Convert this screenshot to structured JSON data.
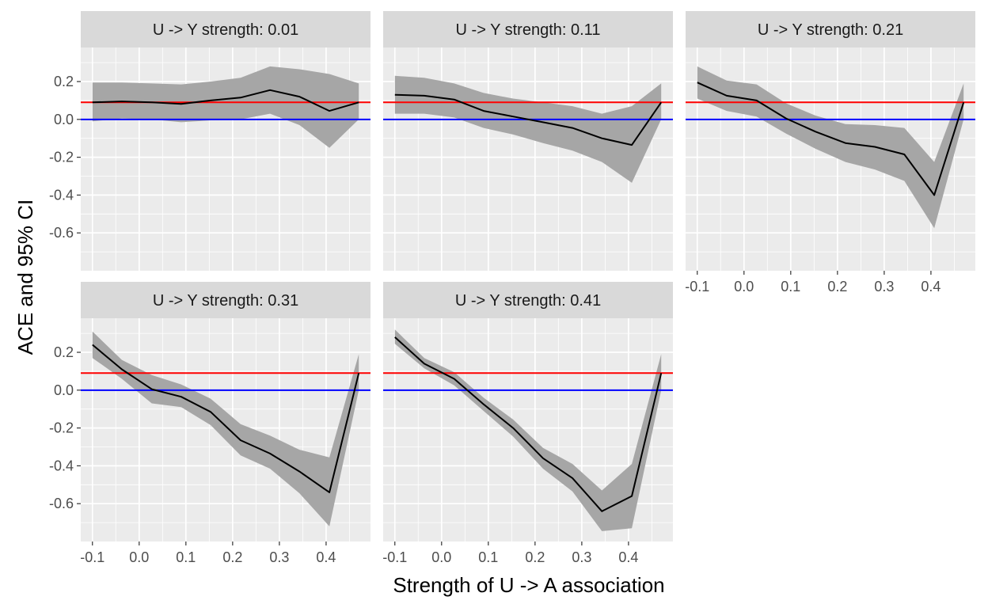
{
  "chart_data": {
    "type": "line",
    "layout": "facet_wrap",
    "xlabel": "Strength of U -> A association",
    "ylabel": "ACE and 95% CI",
    "xlim": [
      -0.125,
      0.495
    ],
    "ylim": [
      -0.8,
      0.38
    ],
    "x_ticks": [
      -0.1,
      0.0,
      0.1,
      0.2,
      0.3,
      0.4
    ],
    "x_tick_labels": [
      "-0.1",
      "0.0",
      "0.1",
      "0.2",
      "0.3",
      "0.4"
    ],
    "y_ticks": [
      -0.6,
      -0.4,
      -0.2,
      0.0,
      0.2
    ],
    "y_tick_labels": [
      "-0.6",
      "-0.4",
      "-0.2",
      "0.0",
      "0.2"
    ],
    "grid": true,
    "reference_lines": [
      {
        "y": 0.09,
        "color": "#ff0000"
      },
      {
        "y": 0.0,
        "color": "#0000ff"
      }
    ],
    "colors": {
      "panel_bg": "#ebebeb",
      "strip_bg": "#d9d9d9",
      "ribbon": "#a6a6a6",
      "line": "#000000",
      "grid": "#ffffff"
    },
    "x": [
      -0.1,
      -0.037,
      0.027,
      0.09,
      0.153,
      0.217,
      0.28,
      0.343,
      0.407,
      0.47
    ],
    "panels": [
      {
        "strip": "U -> Y strength: 0.01",
        "estimate": [
          0.09,
          0.095,
          0.09,
          0.082,
          0.1,
          0.115,
          0.155,
          0.12,
          0.045,
          0.09
        ],
        "lower": [
          -0.01,
          0.005,
          0.0,
          -0.015,
          -0.005,
          0.0,
          0.03,
          -0.03,
          -0.15,
          0.0
        ],
        "upper": [
          0.195,
          0.195,
          0.19,
          0.185,
          0.2,
          0.22,
          0.28,
          0.265,
          0.24,
          0.19
        ]
      },
      {
        "strip": "U -> Y strength: 0.11",
        "estimate": [
          0.13,
          0.125,
          0.105,
          0.045,
          0.015,
          -0.015,
          -0.045,
          -0.1,
          -0.135,
          0.09
        ],
        "lower": [
          0.03,
          0.03,
          0.01,
          -0.045,
          -0.08,
          -0.125,
          -0.165,
          -0.225,
          -0.335,
          0.0
        ],
        "upper": [
          0.23,
          0.22,
          0.19,
          0.14,
          0.11,
          0.09,
          0.07,
          0.03,
          0.07,
          0.19
        ]
      },
      {
        "strip": "U -> Y strength: 0.21",
        "estimate": [
          0.195,
          0.125,
          0.1,
          0.005,
          -0.065,
          -0.125,
          -0.145,
          -0.185,
          -0.4,
          0.09
        ],
        "lower": [
          0.11,
          0.045,
          0.015,
          -0.075,
          -0.155,
          -0.225,
          -0.265,
          -0.325,
          -0.575,
          0.0
        ],
        "upper": [
          0.28,
          0.205,
          0.185,
          0.085,
          0.02,
          -0.025,
          -0.03,
          -0.045,
          -0.225,
          0.19
        ]
      },
      {
        "strip": "U -> Y strength: 0.31",
        "estimate": [
          0.24,
          0.11,
          0.005,
          -0.035,
          -0.115,
          -0.265,
          -0.335,
          -0.43,
          -0.54,
          0.09
        ],
        "lower": [
          0.17,
          0.06,
          -0.07,
          -0.09,
          -0.185,
          -0.345,
          -0.415,
          -0.545,
          -0.72,
          0.0
        ],
        "upper": [
          0.31,
          0.16,
          0.08,
          0.03,
          -0.045,
          -0.18,
          -0.24,
          -0.315,
          -0.355,
          0.19
        ]
      },
      {
        "strip": "U -> Y strength: 0.41",
        "estimate": [
          0.28,
          0.14,
          0.06,
          -0.075,
          -0.2,
          -0.36,
          -0.465,
          -0.64,
          -0.56,
          0.09
        ],
        "lower": [
          0.245,
          0.115,
          0.025,
          -0.11,
          -0.245,
          -0.415,
          -0.535,
          -0.745,
          -0.73,
          0.0
        ],
        "upper": [
          0.32,
          0.17,
          0.095,
          -0.04,
          -0.155,
          -0.305,
          -0.39,
          -0.53,
          -0.39,
          0.19
        ]
      }
    ]
  }
}
